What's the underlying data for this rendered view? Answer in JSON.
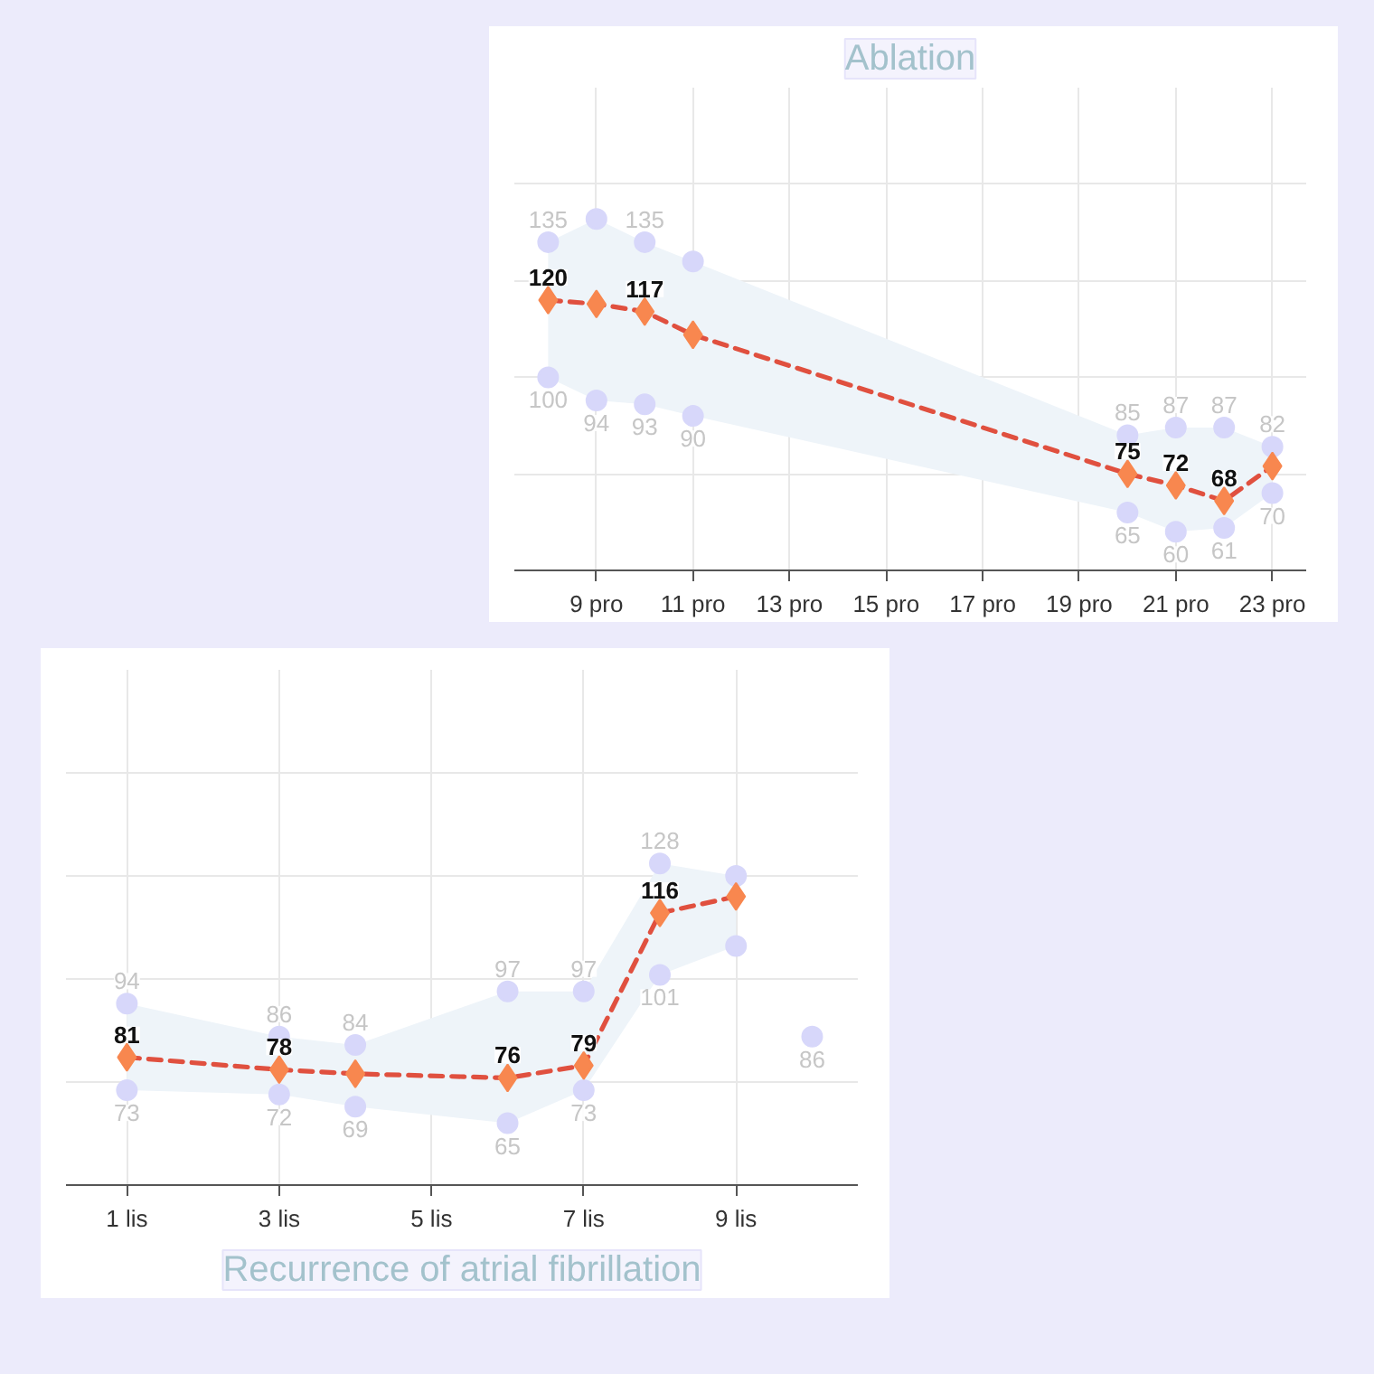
{
  "chart_data": [
    {
      "type": "line",
      "title": "Ablation",
      "x": [
        8,
        9,
        10,
        11,
        20,
        21,
        22,
        23
      ],
      "xlim": [
        7.3,
        23.7
      ],
      "xticks": [
        {
          "value": 9,
          "label": "9 pro"
        },
        {
          "value": 11,
          "label": "11 pro"
        },
        {
          "value": 13,
          "label": "13 pro"
        },
        {
          "value": 15,
          "label": "15 pro"
        },
        {
          "value": 17,
          "label": "17 pro"
        },
        {
          "value": 19,
          "label": "19 pro"
        },
        {
          "value": 21,
          "label": "21 pro"
        },
        {
          "value": 23,
          "label": "23 pro"
        }
      ],
      "ylim": [
        50,
        175
      ],
      "yticks": [
        50,
        75,
        100,
        125,
        150,
        175
      ],
      "tick_labels": "x",
      "grid": true,
      "marker": "diamond",
      "line_style": "dashed",
      "series": [
        {
          "color": "#e0503f",
          "colors": [
            "#f8874f",
            "#f8874f",
            "#f8874f",
            "#f8874f",
            "#f8874f",
            "#f8874f",
            "#f8874f",
            "#f8874f"
          ],
          "values": [
            120,
            119,
            117,
            111,
            75,
            72,
            68,
            77
          ],
          "lower": [
            100,
            94,
            93,
            90,
            65,
            60,
            61,
            70
          ],
          "upper": [
            135,
            141,
            135,
            130,
            85,
            87,
            87,
            82
          ],
          "value_labels": [
            "120",
            null,
            "117",
            null,
            "75",
            "72",
            "68",
            null
          ]
        },
        {
          "type": "scatter",
          "marker": "circle",
          "color": "#d7d7fa",
          "values": [
            135,
            141,
            135,
            130,
            85,
            87,
            87,
            82
          ],
          "value_labels": [
            "135",
            null,
            "135",
            null,
            "85",
            "87",
            "87",
            "82"
          ]
        },
        {
          "type": "scatter",
          "marker": "circle",
          "color": "#d7d7fa",
          "values": [
            100,
            94,
            93,
            90,
            65,
            60,
            61,
            70
          ],
          "value_labels": [
            "100",
            "94",
            "93",
            "90",
            "65",
            "60",
            "61",
            "70"
          ]
        }
      ]
    },
    {
      "type": "line",
      "title": "Recurrence of atrial fibrillation",
      "x": [
        1,
        3,
        4,
        6,
        7,
        8,
        9,
        10
      ],
      "xlim": [
        0.2,
        10.6
      ],
      "xticks": [
        {
          "value": 1,
          "label": "1 lis"
        },
        {
          "value": 3,
          "label": "3 lis"
        },
        {
          "value": 5,
          "label": "5 lis"
        },
        {
          "value": 7,
          "label": "7 lis"
        },
        {
          "value": 9,
          "label": "9 lis"
        }
      ],
      "ylim": [
        50,
        175
      ],
      "yticks": [
        50,
        75,
        100,
        125,
        150,
        175
      ],
      "tick_labels": "x",
      "grid": true,
      "marker": "diamond",
      "line_style": "dashed",
      "series": [
        {
          "color": "#e0503f",
          "colors": [
            "#f8874f",
            "#f8874f",
            "#f8874f",
            "#f8874f",
            "#f8874f",
            "#f8874f",
            "#f8874f",
            "#f8874f"
          ],
          "values": [
            81,
            78,
            77,
            76,
            79,
            116,
            120,
            null
          ],
          "lower": [
            73,
            72,
            69,
            65,
            73,
            101,
            108,
            null
          ],
          "upper": [
            94,
            86,
            84,
            97,
            97,
            128,
            125,
            null
          ],
          "value_labels": [
            "81",
            "78",
            null,
            "76",
            "79",
            "116",
            null,
            null
          ]
        },
        {
          "type": "scatter",
          "marker": "circle",
          "color": "#d7d7fa",
          "values": [
            94,
            86,
            84,
            97,
            97,
            128,
            125,
            null
          ],
          "value_labels": [
            "94",
            "86",
            "84",
            "97",
            "97",
            "128",
            null,
            null
          ]
        },
        {
          "type": "scatter",
          "marker": "circle",
          "color": "#d7d7fa",
          "values": [
            73,
            72,
            69,
            65,
            73,
            101,
            108,
            86
          ],
          "value_labels": [
            "73",
            "72",
            "69",
            "65",
            "73",
            "101",
            null,
            "86"
          ]
        }
      ]
    }
  ]
}
